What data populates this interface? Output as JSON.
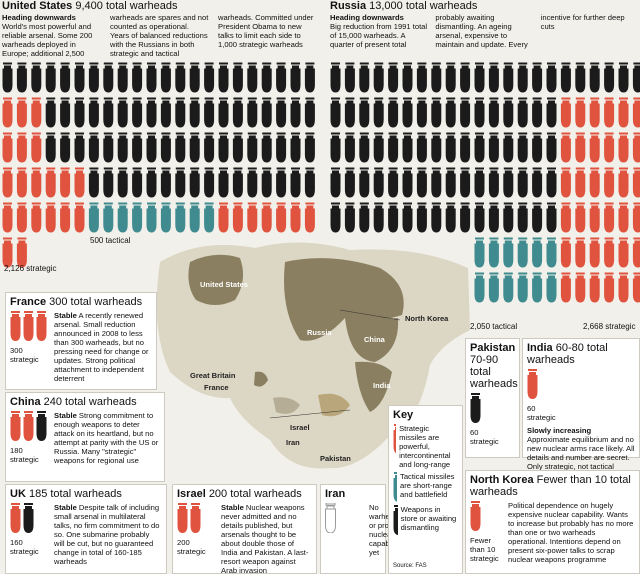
{
  "us": {
    "name": "United States",
    "count": "9,400 total warheads",
    "heading": "Heading downwards",
    "text": "World's most powerful and reliable arsenal. Some 200 warheads deployed in Europe; additional 2,500 warheads are spares and not counted as operational. Years of balanced reductions with the Russians in both strategic and tactical warheads. Committed under President Obama to new talks to limit each side to 1,000 strategic warheads",
    "tactical": "500 tactical",
    "strategic": "2,126 strategic"
  },
  "russia": {
    "name": "Russia",
    "count": "13,000 total warheads",
    "heading": "Heading downwards",
    "text": "Big reduction from 1991 total of 15,000 warheads. A quarter of present total probably awaiting dismantling. An ageing arsenal, expensive to maintain and update. Every incentive for further deep cuts",
    "tactical": "2,050 tactical",
    "strategic": "2,668 strategic"
  },
  "map_labels": [
    "United States",
    "Russia",
    "China",
    "North Korea",
    "Great Britain",
    "France",
    "Israel",
    "Iran",
    "Pakistan",
    "India"
  ],
  "countries": [
    {
      "name": "France",
      "count": "300 total warheads",
      "lead": "Stable",
      "text": "A recently renewed arsenal. Small reduction announced in 2008 to less than 300 warheads, but no pressing need for change or updates. Strong political attachment to independent deterrent",
      "figure": "300",
      "figure_label": "strategic"
    },
    {
      "name": "China",
      "count": "240 total warheads",
      "lead": "Stable",
      "text": "Strong commitment to enough weapons to deter attack on its heartland, but no attempt at parity with the US or Russia. Many \"strategic\" weapons for regional use",
      "figure": "180",
      "figure_label": "strategic"
    },
    {
      "name": "UK",
      "count": "185 total warheads",
      "lead": "Stable",
      "text": "Despite talk of including small arsenal in multilateral talks, no firm commitment to do so. One submarine probably will be cut, but no guaranteed change in total of 160-185 warheads",
      "figure": "160",
      "figure_label": "strategic"
    },
    {
      "name": "Israel",
      "count": "200 total warheads",
      "lead": "Stable",
      "text": "Nuclear weapons never admitted and no details published, but arsenals thought to be about double those of India and Pakistan. A last-resort weapon against Arab invasion",
      "figure": "200",
      "figure_label": "strategic"
    },
    {
      "name": "Iran",
      "text": "No warheads or proven nuclear capability yet"
    },
    {
      "name": "Pakistan",
      "count": "70-90 total warheads",
      "figure": "60",
      "figure_label": "strategic"
    },
    {
      "name": "India",
      "count": "60-80 total warheads",
      "lead": "Slowly increasing",
      "text": "Approximate equilibrium and no new nuclear arms race likely. All details and number are secret. Only strategic, not tactical missiles, held by each side",
      "figure": "60",
      "figure_label": "strategic"
    },
    {
      "name": "North Korea",
      "count": "Fewer than 10 total warheads",
      "text": "Political dependence on hugely expensive nuclear capability. Wants to increase but probably has no more than one or two warheads operational. Intentions depend on present six-power talks to scrap nuclear weapons programme",
      "figure": "Fewer than 10",
      "figure_label": "strategic"
    }
  ],
  "key": {
    "title": "Key",
    "items": [
      "Strategic missiles are powerful, intercontinental and long-range",
      "Tactical missiles are short-range and battlefield",
      "Weapons in store or awaiting dismantling"
    ]
  },
  "source": "Source: FAS"
}
